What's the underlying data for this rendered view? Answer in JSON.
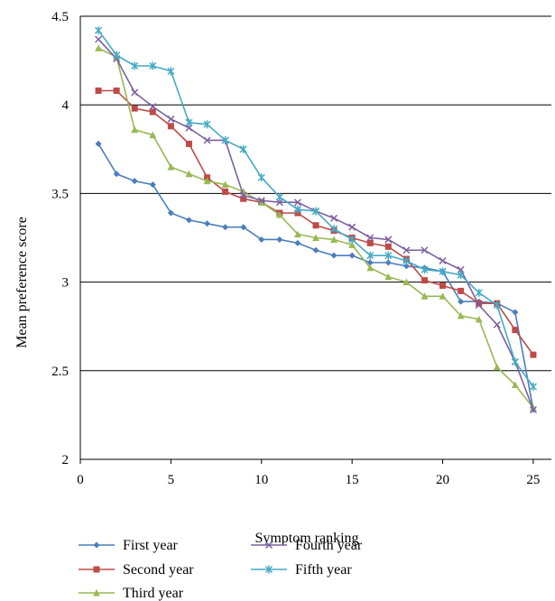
{
  "chart_data": {
    "type": "line",
    "xlabel": "Symptom ranking",
    "ylabel": "Mean preference score",
    "xlim": [
      0,
      26
    ],
    "ylim": [
      2,
      4.5
    ],
    "x_ticks": [
      "0",
      "5",
      "10",
      "15",
      "20",
      "25"
    ],
    "y_ticks": [
      "2",
      "2.5",
      "3",
      "3.5",
      "4",
      "4.5"
    ],
    "grid": "horizontal",
    "legend_position": "bottom",
    "x": [
      1,
      2,
      3,
      4,
      5,
      6,
      7,
      8,
      9,
      10,
      11,
      12,
      13,
      14,
      15,
      16,
      17,
      18,
      19,
      20,
      21,
      22,
      23,
      24,
      25
    ],
    "series": [
      {
        "name": "First year",
        "color": "#4a7ebb",
        "marker": "diamond",
        "values": [
          3.78,
          3.61,
          3.57,
          3.55,
          3.39,
          3.35,
          3.33,
          3.31,
          3.31,
          3.24,
          3.24,
          3.22,
          3.18,
          3.15,
          3.15,
          3.11,
          3.11,
          3.09,
          3.08,
          3.06,
          2.89,
          2.89,
          2.88,
          2.83,
          2.28
        ]
      },
      {
        "name": "Second year",
        "color": "#be4b48",
        "marker": "square",
        "values": [
          4.08,
          4.08,
          3.98,
          3.96,
          3.88,
          3.78,
          3.59,
          3.51,
          3.47,
          3.45,
          3.39,
          3.39,
          3.32,
          3.29,
          3.25,
          3.22,
          3.2,
          3.13,
          3.01,
          2.98,
          2.95,
          2.88,
          2.88,
          2.73,
          2.59
        ]
      },
      {
        "name": "Third year",
        "color": "#98b954",
        "marker": "triangle",
        "values": [
          4.32,
          4.27,
          3.86,
          3.83,
          3.65,
          3.61,
          3.57,
          3.55,
          3.51,
          3.45,
          3.38,
          3.27,
          3.25,
          3.24,
          3.21,
          3.08,
          3.03,
          3.0,
          2.92,
          2.92,
          2.81,
          2.79,
          2.52,
          2.42,
          2.29
        ]
      },
      {
        "name": "Fourth year",
        "color": "#7d60a0",
        "marker": "x",
        "values": [
          4.37,
          4.26,
          4.07,
          3.99,
          3.92,
          3.87,
          3.8,
          3.8,
          3.49,
          3.46,
          3.45,
          3.45,
          3.4,
          3.36,
          3.31,
          3.25,
          3.24,
          3.18,
          3.18,
          3.12,
          3.07,
          2.87,
          2.76,
          2.55,
          2.28
        ]
      },
      {
        "name": "Fifth year",
        "color": "#46aac5",
        "marker": "star",
        "values": [
          4.42,
          4.28,
          4.22,
          4.22,
          4.19,
          3.9,
          3.89,
          3.8,
          3.75,
          3.59,
          3.48,
          3.41,
          3.4,
          3.3,
          3.24,
          3.15,
          3.15,
          3.12,
          3.07,
          3.06,
          3.04,
          2.94,
          2.87,
          2.55,
          2.41
        ]
      }
    ]
  }
}
